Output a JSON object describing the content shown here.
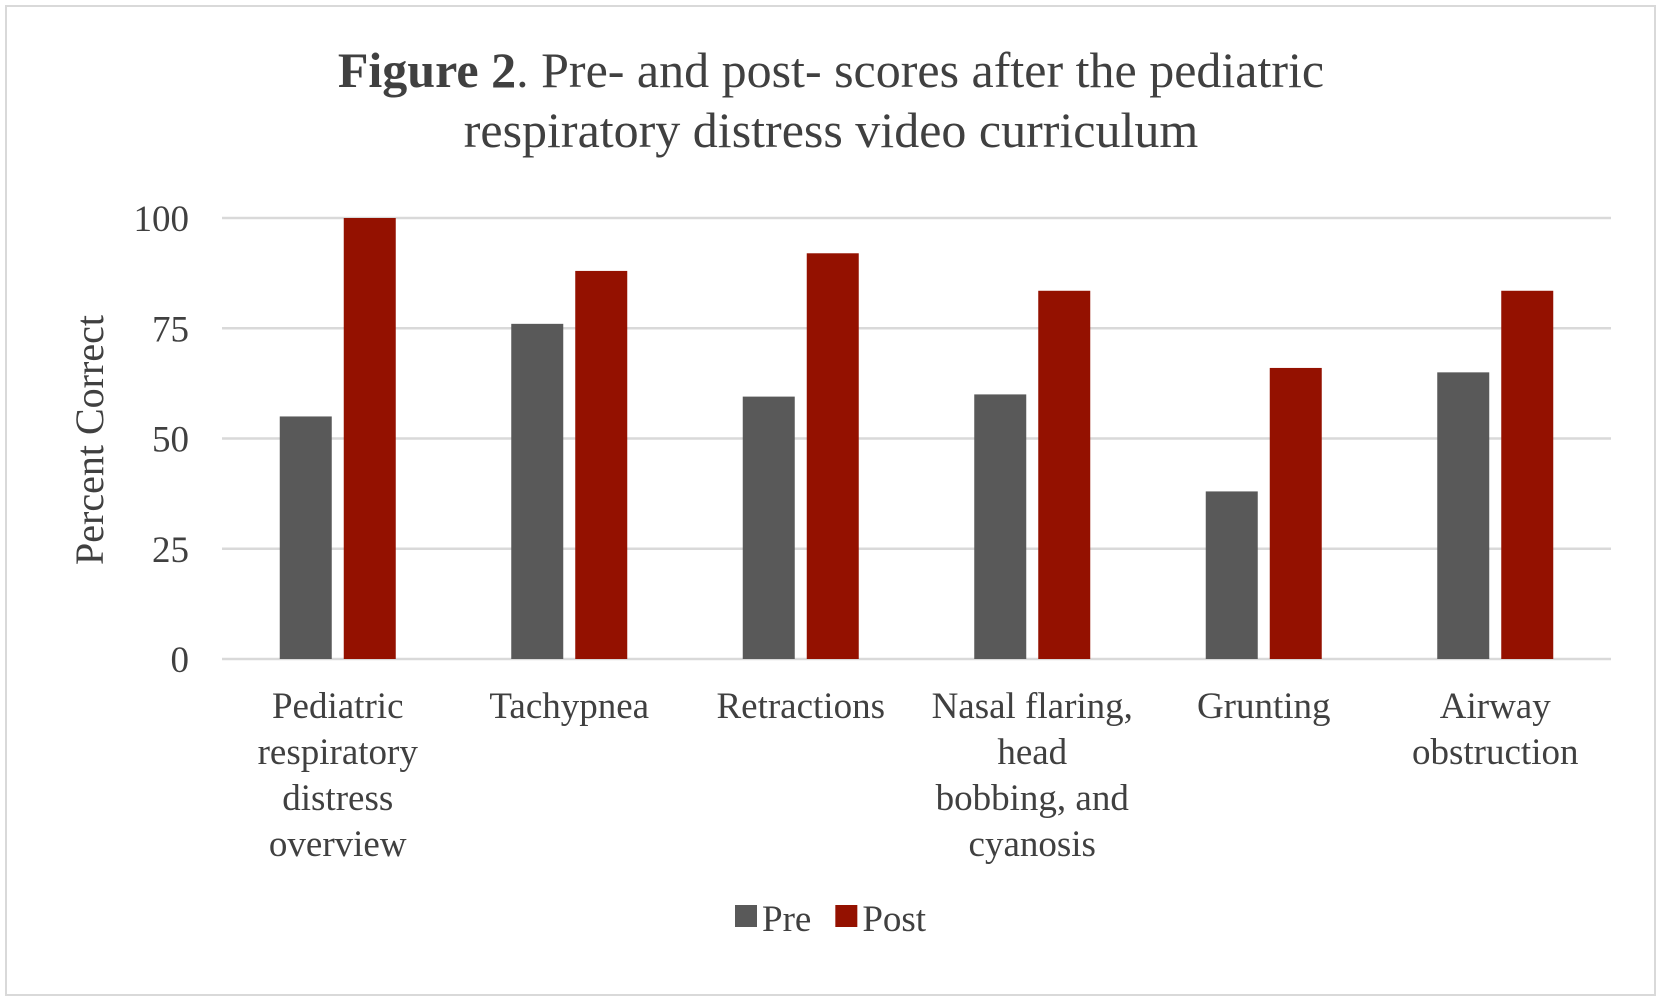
{
  "chart_data": {
    "type": "bar",
    "title_bold": "Figure 2",
    "title_rest_line1": ". Pre- and post- scores after the pediatric",
    "title_line2": "respiratory distress video curriculum",
    "ylabel": "Percent Correct",
    "xlabel": "",
    "ylim": [
      0,
      100
    ],
    "yticks": [
      "0",
      "25",
      "50",
      "75",
      "100"
    ],
    "grid": true,
    "legend_position": "bottom",
    "categories": [
      [
        "Pediatric",
        "respiratory",
        "distress",
        "overview"
      ],
      [
        "Tachypnea"
      ],
      [
        "Retractions"
      ],
      [
        "Nasal flaring,",
        "head",
        "bobbing, and",
        "cyanosis"
      ],
      [
        "Grunting"
      ],
      [
        "Airway",
        "obstruction"
      ]
    ],
    "series": [
      {
        "name": "Pre",
        "color": "#595959",
        "values": [
          55,
          76,
          59.5,
          60,
          38,
          65
        ]
      },
      {
        "name": "Post",
        "color": "#941100",
        "values": [
          100,
          88,
          92,
          83.5,
          66,
          83.5
        ]
      }
    ]
  }
}
